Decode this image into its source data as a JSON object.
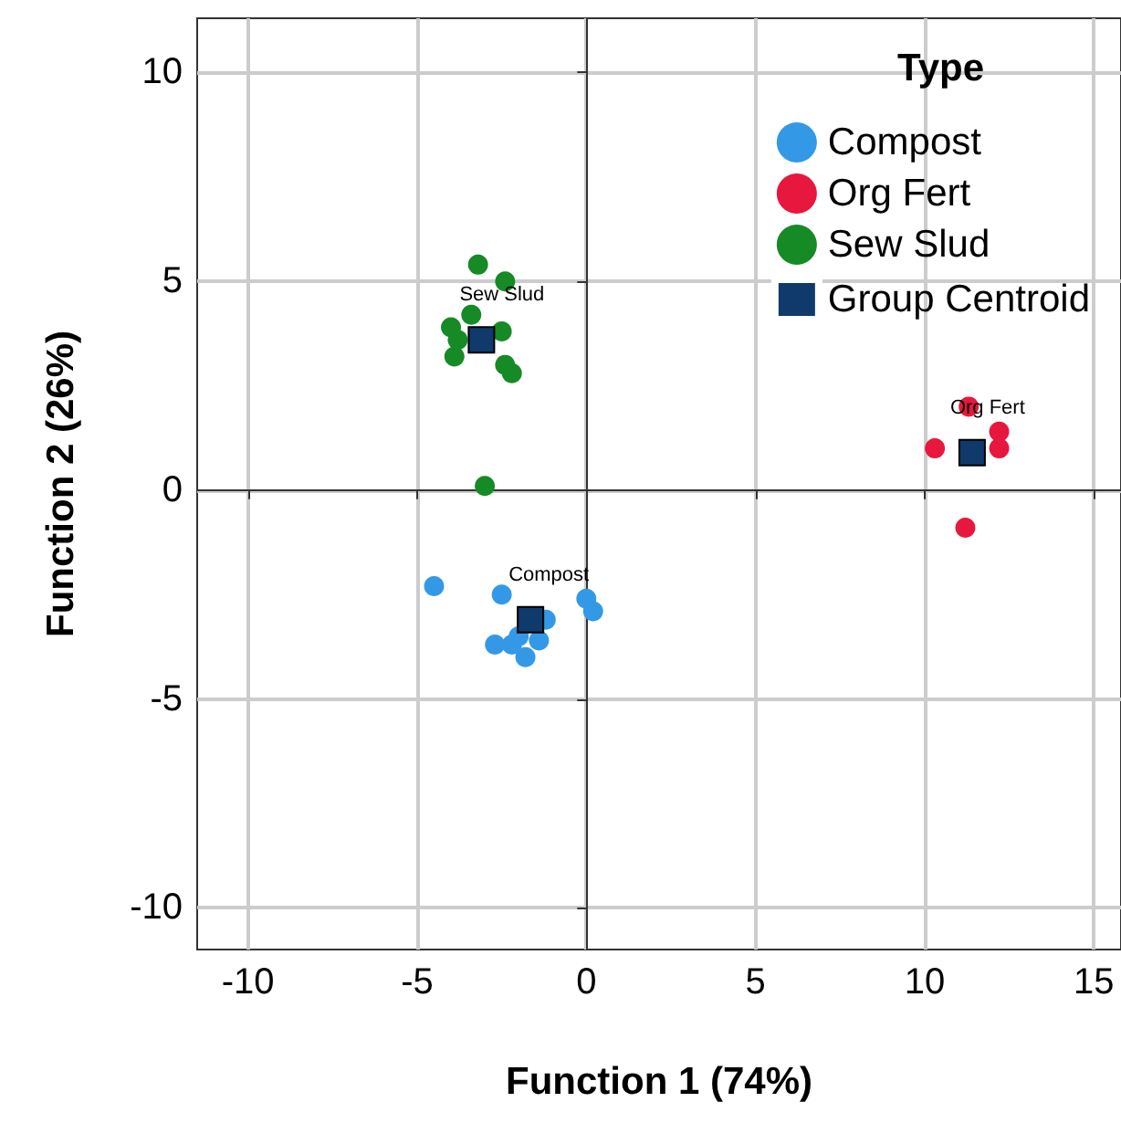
{
  "chart_data": {
    "type": "scatter",
    "xlabel": "Function 1 (74%)",
    "ylabel": "Function 2 (26%)",
    "legend_title": "Type",
    "legend": "top right",
    "grid": true,
    "marker": "circle",
    "xlim": [
      -11.5,
      15.8
    ],
    "ylim": [
      -11,
      11.3
    ],
    "xticks": [
      -10,
      -5,
      0,
      5,
      10,
      15
    ],
    "yticks": [
      -10,
      -5,
      0,
      5,
      10
    ],
    "series": [
      {
        "name": "Compost",
        "color": "#3399e6",
        "x": [
          -4.5,
          -2.5,
          -1.2,
          0,
          0.2,
          -2.7,
          -2.2,
          -1.8,
          -1.4,
          -2.0
        ],
        "values": [
          -2.3,
          -2.5,
          -3.1,
          -2.6,
          -2.9,
          -3.7,
          -3.7,
          -4.0,
          -3.6,
          -3.5
        ]
      },
      {
        "name": "Org Fert",
        "color": "#e8173d",
        "x": [
          11.3,
          10.3,
          12.2,
          12.2,
          11.2
        ],
        "values": [
          2.0,
          1.0,
          1.4,
          1.0,
          -0.9
        ]
      },
      {
        "name": "Sew Slud",
        "color": "#168a25",
        "x": [
          -3.2,
          -2.4,
          -4.0,
          -3.8,
          -3.9,
          -2.5,
          -2.4,
          -2.2,
          -3.0,
          -3.4
        ],
        "values": [
          5.4,
          5.0,
          3.9,
          3.6,
          3.2,
          3.8,
          3.0,
          2.8,
          0.1,
          4.2
        ]
      },
      {
        "name": "Group Centroid",
        "color": "#0f3a6b",
        "marker": "square",
        "x": [
          -1.65,
          11.4,
          -3.1
        ],
        "values": [
          -3.1,
          0.9,
          3.6
        ]
      }
    ],
    "annotations": [
      {
        "text": "Compost",
        "x": -1.65,
        "y": -3.1
      },
      {
        "text": "Org Fert",
        "x": 11.4,
        "y": 0.9
      },
      {
        "text": "Sew Slud",
        "x": -3.1,
        "y": 3.6
      }
    ]
  }
}
